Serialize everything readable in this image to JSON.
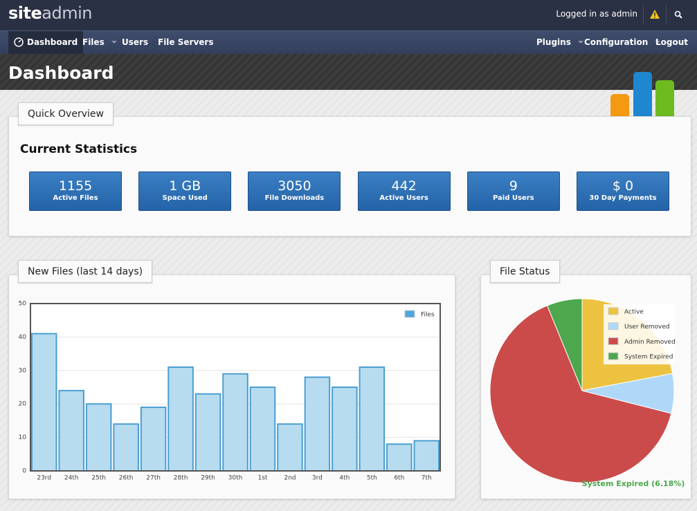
{
  "header": {
    "logo_bold": "site",
    "logo_light": "admin",
    "user_text": "Logged in as admin"
  },
  "nav": {
    "left": [
      "Dashboard",
      "Files",
      "Users",
      "File Servers"
    ],
    "right": [
      "Plugins",
      "Configuration",
      "Logout"
    ]
  },
  "page_title": "Dashboard",
  "quick_overview": {
    "tab": "Quick Overview",
    "heading": "Current Statistics",
    "stats": [
      {
        "value": "1155",
        "label": "Active Files"
      },
      {
        "value": "1 GB",
        "label": "Space Used"
      },
      {
        "value": "3050",
        "label": "File Downloads"
      },
      {
        "value": "442",
        "label": "Active Users"
      },
      {
        "value": "9",
        "label": "Paid Users"
      },
      {
        "value": "$ 0",
        "label": "30 Day Payments"
      }
    ]
  },
  "chart_data": [
    {
      "type": "bar",
      "title": "New Files (last 14 days)",
      "categories": [
        "23rd",
        "24th",
        "25th",
        "26th",
        "27th",
        "28th",
        "29th",
        "30th",
        "1st",
        "2nd",
        "3rd",
        "4th",
        "5th",
        "6th",
        "7th"
      ],
      "series": [
        {
          "name": "Files",
          "color": "#b7dcef",
          "values": [
            41,
            24,
            20,
            14,
            19,
            31,
            23,
            29,
            25,
            14,
            28,
            25,
            31,
            8,
            9
          ]
        }
      ],
      "ylim": [
        0,
        50
      ],
      "yticks": [
        0,
        10,
        20,
        30,
        40,
        50
      ],
      "grid": true,
      "legend": "top-right"
    },
    {
      "type": "pie",
      "title": "File Status",
      "categories": [
        "Active",
        "User Removed",
        "Admin Removed",
        "System Expired"
      ],
      "values": [
        22,
        7,
        64.82,
        6.18
      ],
      "colors": [
        "#edc240",
        "#afd8f8",
        "#cb4b4b",
        "#4da74d"
      ],
      "legend": "top-right",
      "annotation": "System Expired (6.18%)"
    }
  ]
}
